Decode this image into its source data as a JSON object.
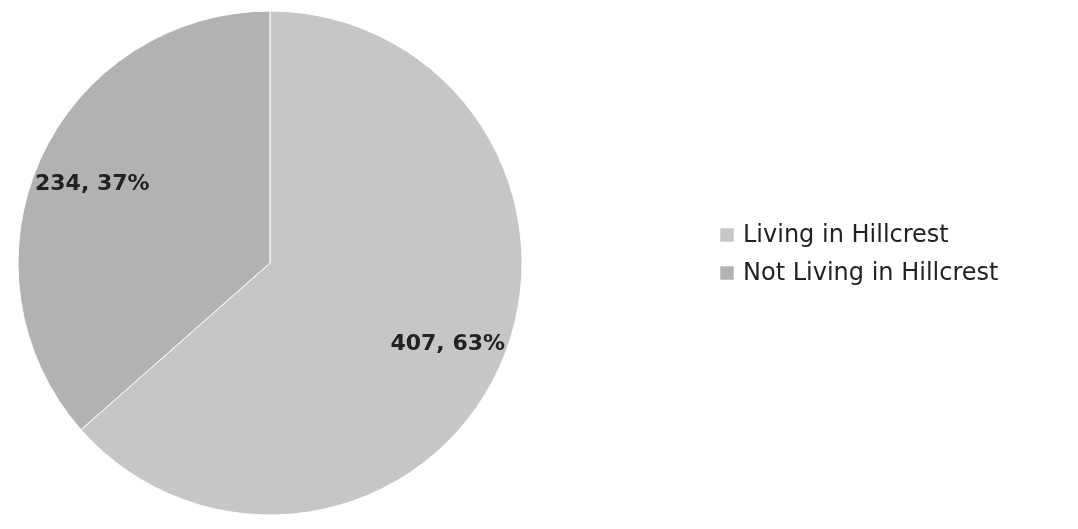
{
  "chart_data": {
    "type": "pie",
    "categories": [
      "Living in Hillcrest",
      "Not Living in Hillcrest"
    ],
    "values": [
      407,
      234
    ],
    "colors": [
      "#c6c6c6",
      "#b2b2b2"
    ],
    "value_labels": [
      "407, 63%",
      "234, 37%"
    ],
    "legend": "right"
  }
}
